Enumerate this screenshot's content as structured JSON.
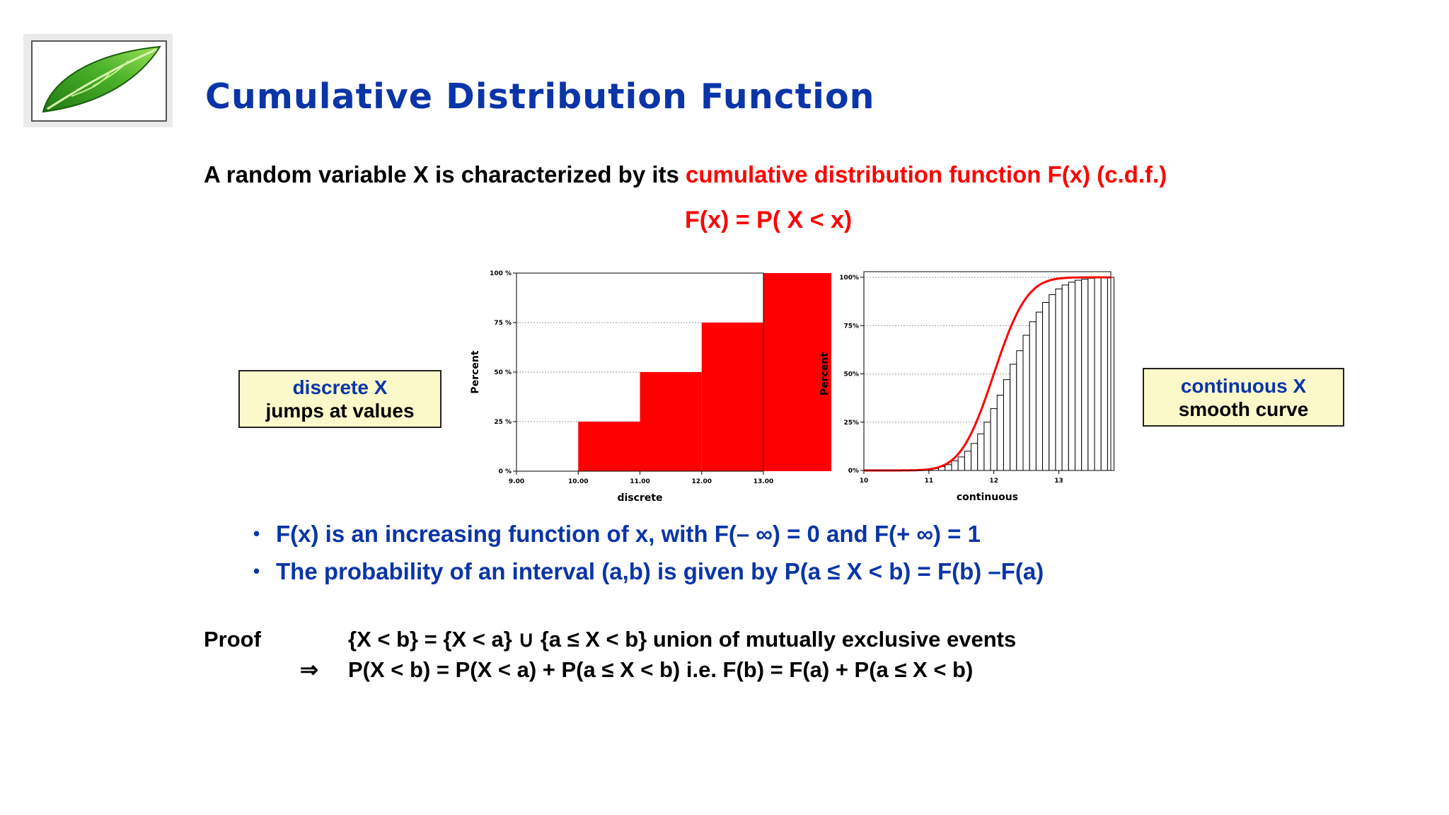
{
  "slide": {
    "title": "Cumulative Distribution Function",
    "intro_prefix": "A random variable X is characterized by its ",
    "intro_highlight": "cumulative distribution function F(x) (c.d.f.)",
    "formula": "F(x) = P( X < x)"
  },
  "callouts": {
    "discrete": {
      "line1": "discrete X",
      "line2": "jumps at values"
    },
    "continuous": {
      "line1": "continuous X",
      "line2": "smooth curve"
    }
  },
  "bullets": [
    "F(x) is an increasing function of x, with F(– ∞) = 0 and F(+ ∞) = 1",
    "The probability of an interval (a,b) is given by P(a ≤ X < b) = F(b) –F(a)"
  ],
  "proof": {
    "label": "Proof",
    "line1": "{X < b} = {X < a} ∪ {a ≤ X < b}  union of mutually exclusive events",
    "implies_symbol": "⇒",
    "line2": "P(X < b) = P(X < a) + P(a ≤ X < b) i.e. F(b) = F(a) + P(a ≤ X < b)"
  },
  "colors": {
    "title_blue": "#0a35a8",
    "highlight_red": "#ff0000",
    "callout_fill": "#fbf9c9",
    "bar_red": "#ff0000"
  },
  "icons": {
    "logo": "green-leaf-logo"
  },
  "chart_data": [
    {
      "type": "bar",
      "xlabel": "discrete",
      "ylabel": "Percent",
      "xlim": [
        9.0,
        13.0
      ],
      "ylim": [
        0,
        100
      ],
      "x_ticks": [
        "9.00",
        "10.00",
        "11.00",
        "12.00",
        "13.00"
      ],
      "y_ticks": [
        "0 %",
        "25 %",
        "50 %",
        "75 %",
        "100 %"
      ],
      "steps": [
        {
          "from": 10.0,
          "to": 11.0,
          "value": 25
        },
        {
          "from": 11.0,
          "to": 12.0,
          "value": 50
        },
        {
          "from": 12.0,
          "to": 13.0,
          "value": 75
        },
        {
          "from": 13.0,
          "to": 14.1,
          "value": 100
        }
      ],
      "grid": "horizontal dotted"
    },
    {
      "type": "bar",
      "xlabel": "continuous",
      "ylabel": "Percent",
      "xlim": [
        10,
        13.8
      ],
      "ylim": [
        0,
        100
      ],
      "x_ticks": [
        "10",
        "11",
        "12",
        "13"
      ],
      "y_ticks": [
        "0%",
        "25%",
        "50%",
        "75%",
        "100%"
      ],
      "bins_start": 11.05,
      "bins_width": 0.1,
      "bins_values": [
        1,
        2,
        3,
        5,
        7,
        10,
        14,
        19,
        25,
        32,
        39,
        47,
        55,
        62,
        70,
        77,
        82,
        87,
        91,
        94,
        96,
        97.5,
        98.5,
        99,
        99.5,
        99.7,
        99.9,
        100
      ],
      "curve": {
        "kind": "normal cdf",
        "mean": 12.0,
        "sd": 0.4
      },
      "grid": "horizontal dotted"
    }
  ]
}
